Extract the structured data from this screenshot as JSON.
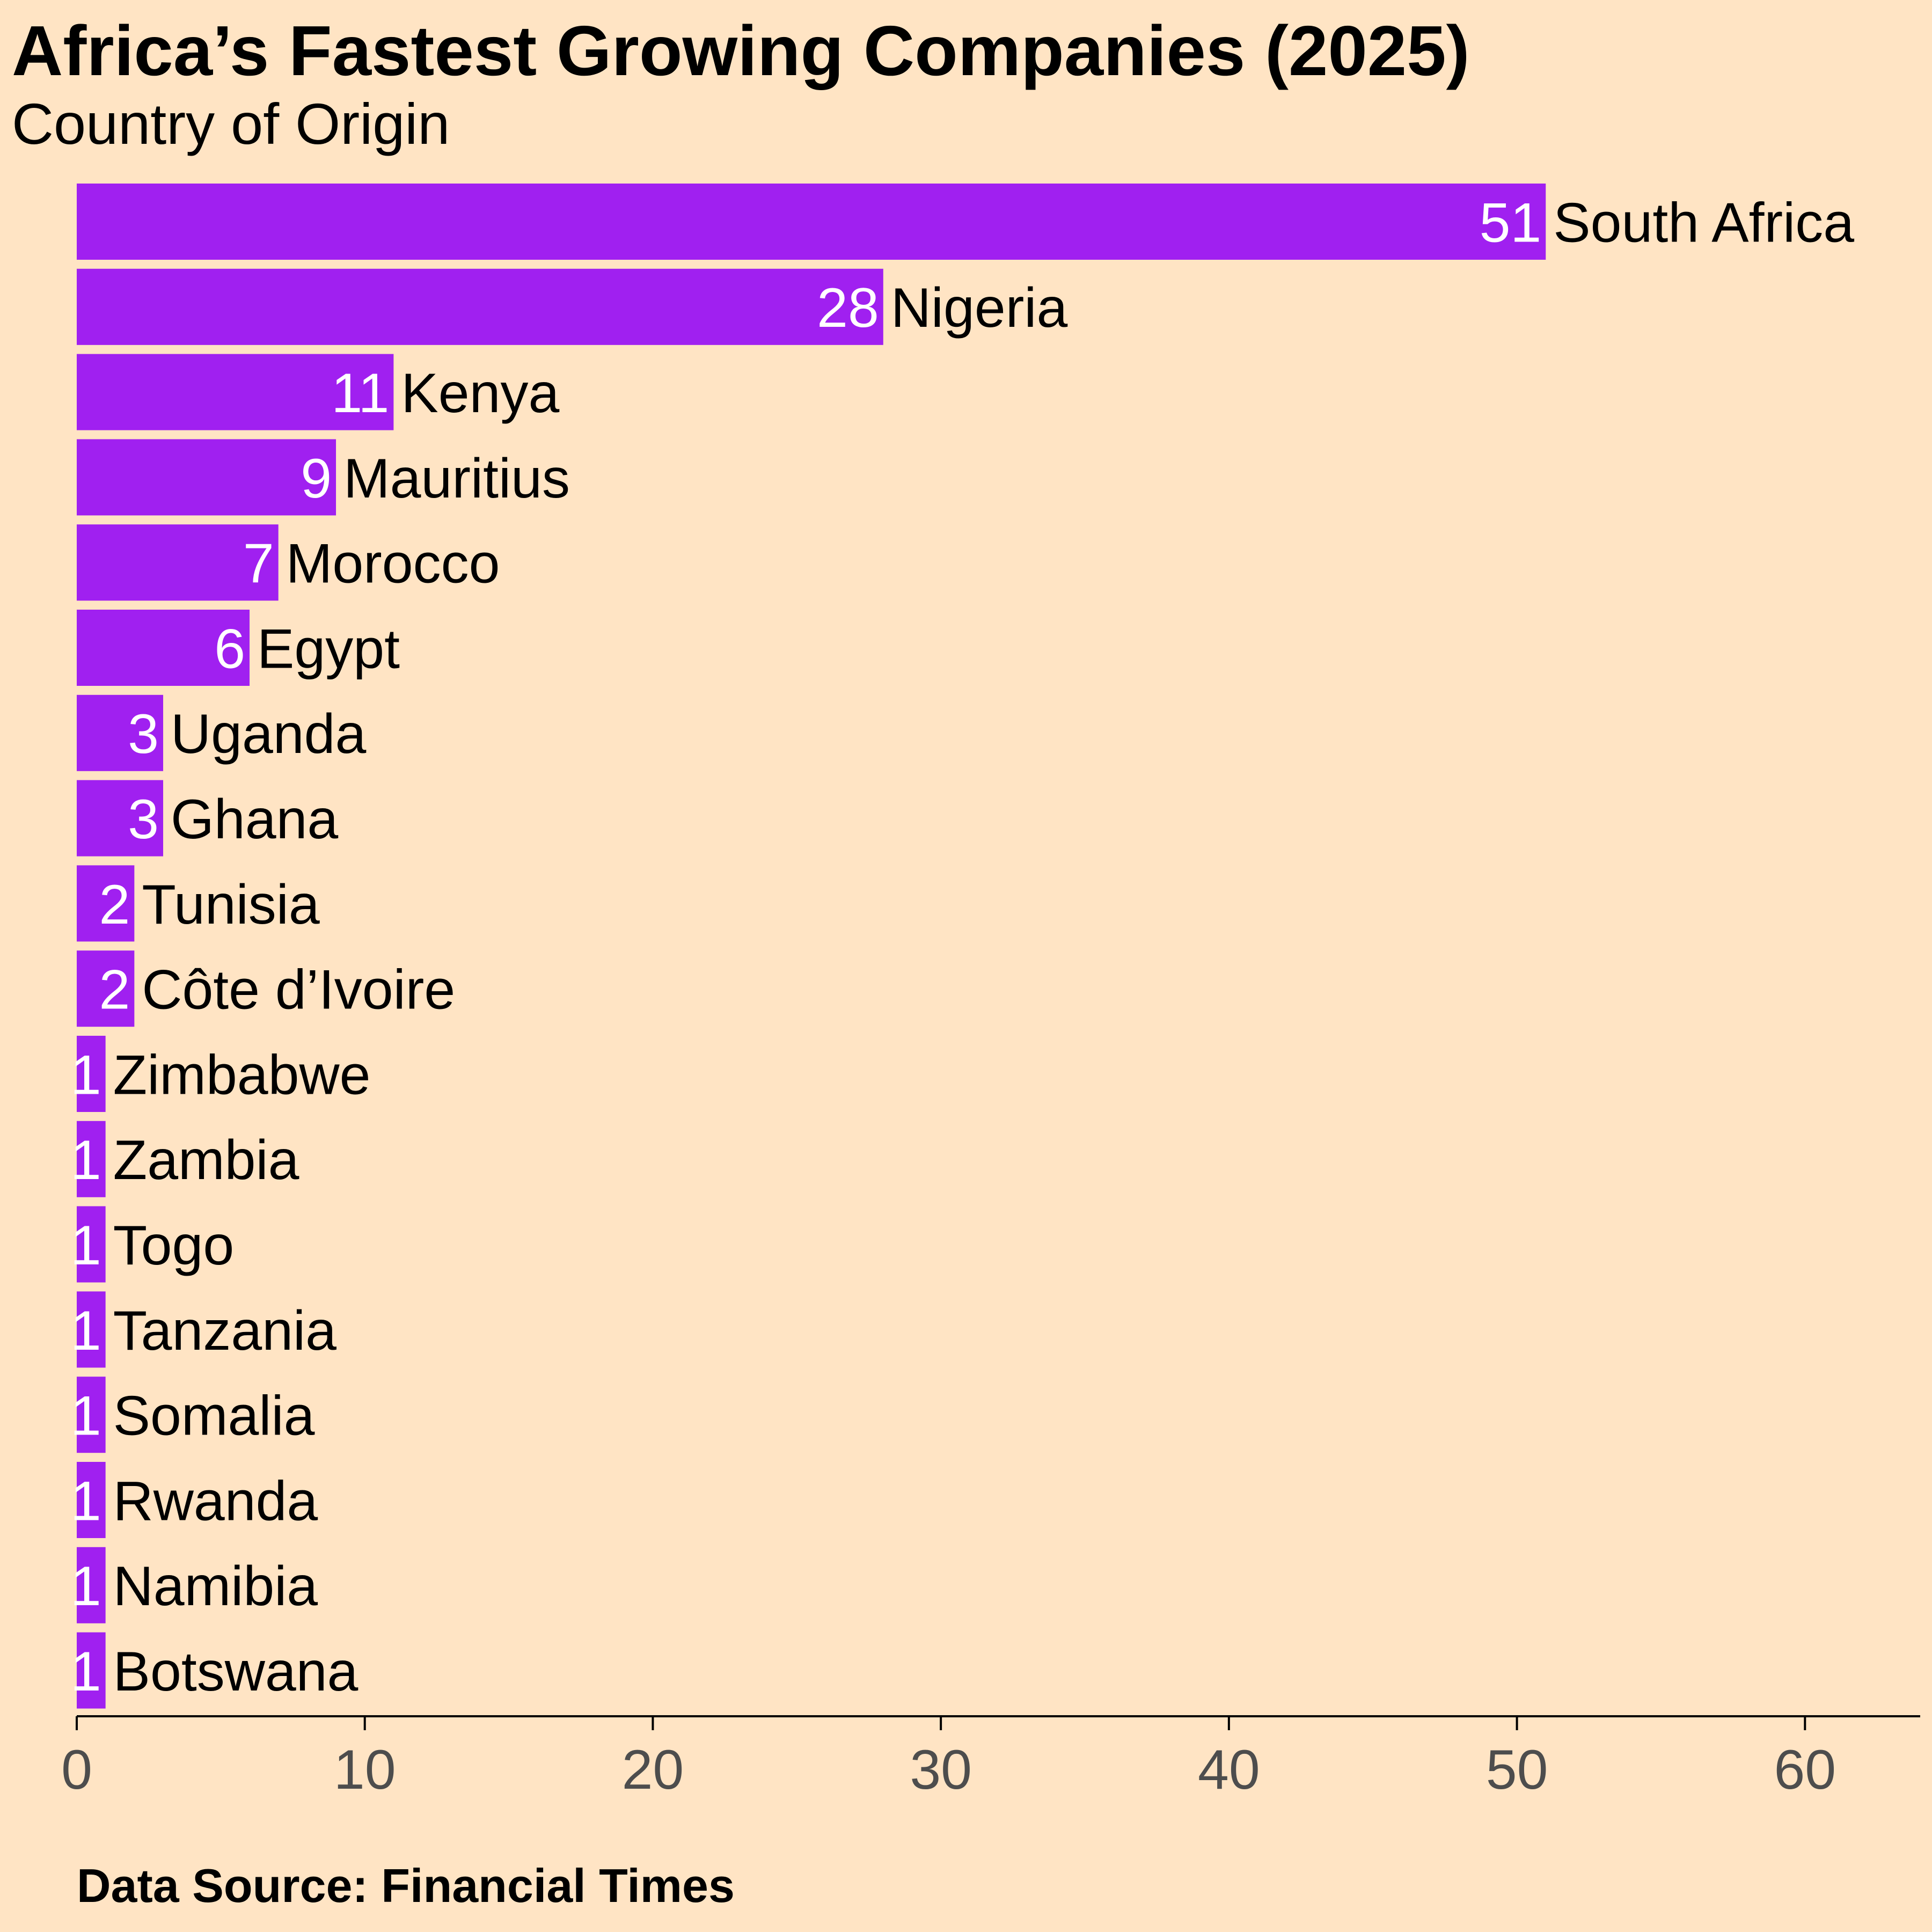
{
  "chart_data": {
    "type": "bar",
    "orientation": "horizontal",
    "title": "Africa’s Fastest Growing Companies (2025)",
    "subtitle": "Country of Origin",
    "caption": "Data Source: Financial Times",
    "xlabel": "",
    "ylabel": "",
    "categories": [
      "South Africa",
      "Nigeria",
      "Kenya",
      "Mauritius",
      "Morocco",
      "Egypt",
      "Uganda",
      "Ghana",
      "Tunisia",
      "Côte d’Ivoire",
      "Zimbabwe",
      "Zambia",
      "Togo",
      "Tanzania",
      "Somalia",
      "Rwanda",
      "Namibia",
      "Botswana"
    ],
    "values": [
      51,
      28,
      11,
      9,
      7,
      6,
      3,
      3,
      2,
      2,
      1,
      1,
      1,
      1,
      1,
      1,
      1,
      1
    ],
    "xlim": [
      0,
      64
    ],
    "x_ticks": [
      0,
      10,
      20,
      30,
      40,
      50,
      60
    ],
    "grid": false,
    "legend": "none",
    "colors": {
      "bar": "#A020F0",
      "background": "#FFE4C4",
      "value_text": "#FFFFFF",
      "category_text": "#000000",
      "axis": "#000000",
      "tick_text": "#4D4D4D"
    }
  }
}
